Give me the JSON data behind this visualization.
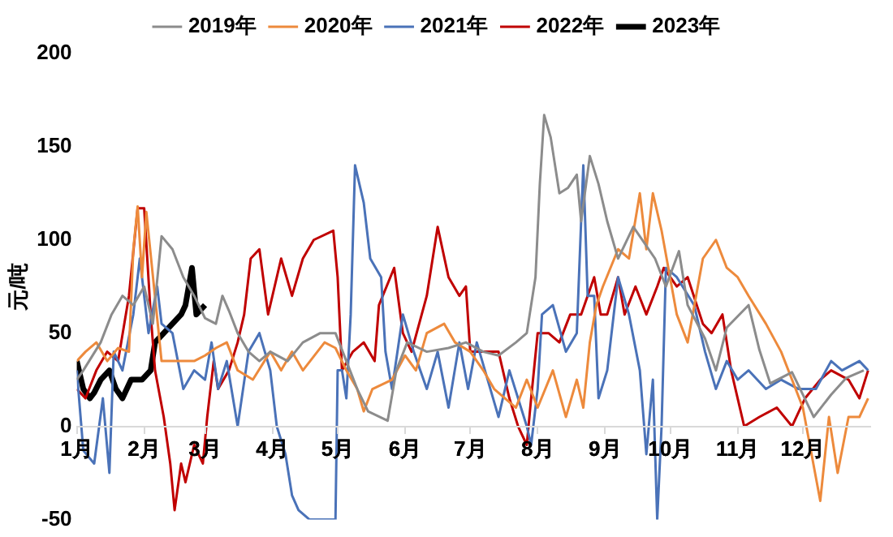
{
  "chart_data": {
    "type": "line",
    "ylabel": "元/吨",
    "xlim": [
      "--01-01",
      "--12-31"
    ],
    "xticks": [
      {
        "value": "--01-01",
        "label": "1月"
      },
      {
        "value": "--02-01",
        "label": "2月"
      },
      {
        "value": "--03-01",
        "label": "3月"
      },
      {
        "value": "--04-01",
        "label": "4月"
      },
      {
        "value": "--05-01",
        "label": "5月"
      },
      {
        "value": "--06-01",
        "label": "6月"
      },
      {
        "value": "--07-01",
        "label": "7月"
      },
      {
        "value": "--08-01",
        "label": "8月"
      },
      {
        "value": "--09-01",
        "label": "9月"
      },
      {
        "value": "--10-01",
        "label": "10月"
      },
      {
        "value": "--11-01",
        "label": "11月"
      },
      {
        "value": "--12-01",
        "label": "12月"
      }
    ],
    "ylim": [
      -50,
      200
    ],
    "yticks": [
      -50,
      0,
      50,
      100,
      150,
      200
    ],
    "grid": false,
    "legend": "top",
    "marker": "none",
    "line_style": "solid",
    "series": [
      {
        "name": "2019年",
        "color": "#8c8c8c",
        "x": [
          "--01-01",
          "--01-04",
          "--01-12",
          "--01-17",
          "--01-22",
          "--01-27",
          "--02-01",
          "--02-05",
          "--02-09",
          "--02-14",
          "--02-19",
          "--02-24",
          "--03-01",
          "--03-06",
          "--03-09",
          "--03-12",
          "--03-16",
          "--03-21",
          "--03-26",
          "--03-31",
          "--04-08",
          "--04-15",
          "--04-23",
          "--04-30",
          "--05-05",
          "--05-10",
          "--05-15",
          "--05-24",
          "--05-28",
          "--06-02",
          "--06-11",
          "--06-21",
          "--06-29",
          "--07-07",
          "--07-14",
          "--07-22",
          "--07-27",
          "--07-31",
          "--08-02",
          "--08-04",
          "--08-07",
          "--08-11",
          "--08-15",
          "--08-19",
          "--08-21",
          "--08-25",
          "--08-29",
          "--09-02",
          "--09-07",
          "--09-14",
          "--09-24",
          "--09-29",
          "--10-05",
          "--10-09",
          "--10-17",
          "--10-22",
          "--10-27",
          "--11-06",
          "--11-11",
          "--11-16",
          "--11-26",
          "--12-06",
          "--12-14",
          "--12-21",
          "--12-29"
        ],
        "values": [
          25,
          30,
          45,
          60,
          70,
          65,
          75,
          55,
          102,
          95,
          80,
          70,
          58,
          55,
          70,
          62,
          50,
          40,
          35,
          40,
          35,
          45,
          50,
          50,
          35,
          20,
          8,
          3,
          30,
          45,
          40,
          42,
          45,
          40,
          38,
          45,
          50,
          80,
          130,
          167,
          155,
          125,
          128,
          135,
          110,
          145,
          130,
          110,
          90,
          107,
          90,
          75,
          94,
          65,
          47,
          30,
          53,
          65,
          41,
          23,
          29,
          5,
          17,
          26,
          30
        ]
      },
      {
        "name": "2020年",
        "color": "#ed8a3c",
        "x": [
          "--01-01",
          "--01-05",
          "--01-10",
          "--01-15",
          "--01-20",
          "--01-25",
          "--01-27",
          "--01-29",
          "--01-31",
          "--02-02",
          "--02-09",
          "--02-14",
          "--02-24",
          "--03-01",
          "--03-06",
          "--03-11",
          "--03-16",
          "--03-23",
          "--03-31",
          "--04-05",
          "--04-10",
          "--04-15",
          "--04-25",
          "--04-30",
          "--05-05",
          "--05-10",
          "--05-13",
          "--05-17",
          "--05-26",
          "--06-01",
          "--06-06",
          "--06-11",
          "--06-19",
          "--06-24",
          "--07-01",
          "--07-07",
          "--07-12",
          "--07-22",
          "--07-27",
          "--08-01",
          "--08-08",
          "--08-14",
          "--08-19",
          "--08-22",
          "--08-25",
          "--08-28",
          "--08-31",
          "--09-07",
          "--09-12",
          "--09-17",
          "--09-20",
          "--09-23",
          "--09-27",
          "--10-04",
          "--10-09",
          "--10-16",
          "--10-22",
          "--10-27",
          "--11-01",
          "--11-06",
          "--11-14",
          "--11-21",
          "--11-26",
          "--12-01",
          "--12-09",
          "--12-13",
          "--12-17",
          "--12-22",
          "--12-27",
          "--12-31"
        ],
        "values": [
          35,
          40,
          45,
          35,
          42,
          40,
          95,
          118,
          80,
          115,
          35,
          35,
          35,
          38,
          42,
          45,
          30,
          25,
          40,
          30,
          40,
          30,
          45,
          42,
          30,
          20,
          8,
          20,
          25,
          38,
          30,
          50,
          55,
          45,
          40,
          30,
          20,
          10,
          25,
          10,
          30,
          5,
          25,
          10,
          45,
          65,
          75,
          95,
          90,
          125,
          95,
          125,
          105,
          60,
          45,
          90,
          100,
          85,
          80,
          70,
          55,
          40,
          25,
          10,
          -40,
          5,
          -25,
          5,
          5,
          15
        ]
      },
      {
        "name": "2021年",
        "color": "#4a72b8",
        "x": [
          "--01-01",
          "--01-04",
          "--01-09",
          "--01-13",
          "--01-16",
          "--01-18",
          "--01-22",
          "--01-27",
          "--01-30",
          "--02-03",
          "--02-07",
          "--02-09",
          "--02-14",
          "--02-19",
          "--02-24",
          "--03-01",
          "--03-04",
          "--03-07",
          "--03-11",
          "--03-16",
          "--03-21",
          "--03-26",
          "--03-31",
          "--04-03",
          "--04-07",
          "--04-10",
          "--04-13",
          "--04-18",
          "--04-28",
          "--04-30",
          "--05-01",
          "--05-03",
          "--05-05",
          "--05-07",
          "--05-09",
          "--05-13",
          "--05-16",
          "--05-21",
          "--05-23",
          "--05-26",
          "--05-31",
          "--06-05",
          "--06-11",
          "--06-16",
          "--06-21",
          "--06-26",
          "--06-30",
          "--07-04",
          "--07-09",
          "--07-14",
          "--07-19",
          "--07-27",
          "--07-29",
          "--08-01",
          "--08-03",
          "--08-08",
          "--08-14",
          "--08-19",
          "--08-22",
          "--08-24",
          "--08-27",
          "--08-29",
          "--09-02",
          "--09-07",
          "--09-12",
          "--09-17",
          "--09-20",
          "--09-23",
          "--09-25",
          "--09-27",
          "--09-29",
          "--10-04",
          "--10-12",
          "--10-17",
          "--10-22",
          "--10-27",
          "--11-01",
          "--11-06",
          "--11-14",
          "--11-21",
          "--11-29",
          "--12-07",
          "--12-14",
          "--12-19",
          "--12-27",
          "--12-31"
        ],
        "values": [
          30,
          -13,
          -20,
          15,
          -25,
          40,
          30,
          60,
          90,
          50,
          75,
          55,
          50,
          20,
          30,
          25,
          45,
          20,
          35,
          0,
          40,
          50,
          30,
          0,
          -15,
          -37,
          -45,
          -50,
          -50,
          -50,
          30,
          30,
          15,
          60,
          140,
          120,
          90,
          80,
          40,
          20,
          60,
          40,
          20,
          40,
          10,
          45,
          20,
          45,
          25,
          5,
          30,
          0,
          -10,
          20,
          60,
          65,
          40,
          50,
          140,
          70,
          70,
          15,
          30,
          80,
          60,
          30,
          -15,
          25,
          -50,
          0,
          85,
          80,
          65,
          40,
          20,
          35,
          25,
          30,
          20,
          25,
          20,
          20,
          35,
          30,
          35,
          30
        ]
      },
      {
        "name": "2022年",
        "color": "#c00000",
        "x": [
          "--01-01",
          "--01-05",
          "--01-10",
          "--01-15",
          "--01-20",
          "--01-25",
          "--01-29",
          "--02-01",
          "--02-04",
          "--02-06",
          "--02-10",
          "--02-13",
          "--02-15",
          "--02-18",
          "--02-20",
          "--02-24",
          "--02-28",
          "--03-02",
          "--03-05",
          "--03-07",
          "--03-12",
          "--03-16",
          "--03-19",
          "--03-22",
          "--03-26",
          "--03-30",
          "--04-05",
          "--04-10",
          "--04-15",
          "--04-20",
          "--04-29",
          "--05-01",
          "--05-03",
          "--05-08",
          "--05-13",
          "--05-18",
          "--05-20",
          "--05-27",
          "--05-31",
          "--06-04",
          "--06-11",
          "--06-16",
          "--06-21",
          "--06-26",
          "--06-29",
          "--07-01",
          "--07-09",
          "--07-14",
          "--07-19",
          "--07-23",
          "--07-27",
          "--07-29",
          "--08-01",
          "--08-06",
          "--08-11",
          "--08-16",
          "--08-21",
          "--08-27",
          "--08-30",
          "--09-02",
          "--09-07",
          "--09-10",
          "--09-15",
          "--09-20",
          "--09-25",
          "--09-28",
          "--10-04",
          "--10-09",
          "--10-16",
          "--10-20",
          "--10-25",
          "--10-29",
          "--11-01",
          "--11-04",
          "--11-11",
          "--11-19",
          "--11-26",
          "--12-02",
          "--12-09",
          "--12-14",
          "--12-22",
          "--12-27",
          "--12-31"
        ],
        "values": [
          20,
          15,
          30,
          40,
          35,
          70,
          117,
          117,
          60,
          30,
          5,
          -20,
          -45,
          -20,
          -30,
          -10,
          -20,
          5,
          35,
          20,
          30,
          45,
          60,
          90,
          95,
          60,
          90,
          70,
          90,
          100,
          105,
          80,
          30,
          40,
          45,
          35,
          65,
          85,
          50,
          40,
          70,
          107,
          80,
          70,
          75,
          40,
          40,
          40,
          15,
          0,
          -10,
          15,
          50,
          50,
          45,
          60,
          60,
          80,
          60,
          60,
          80,
          60,
          75,
          60,
          75,
          85,
          75,
          80,
          55,
          50,
          60,
          30,
          15,
          0,
          5,
          10,
          0,
          15,
          25,
          30,
          25,
          15,
          30
        ]
      },
      {
        "name": "2023年",
        "color": "#000000",
        "x": [
          "--01-01",
          "--01-04",
          "--01-07",
          "--01-09",
          "--01-12",
          "--01-16",
          "--01-19",
          "--01-22",
          "--01-26",
          "--01-31",
          "--02-04",
          "--02-06",
          "--02-10",
          "--02-14",
          "--02-18",
          "--02-20",
          "--02-23",
          "--02-25",
          "--03-01"
        ],
        "values": [
          35,
          20,
          15,
          18,
          25,
          30,
          20,
          15,
          25,
          25,
          30,
          45,
          50,
          55,
          60,
          65,
          85,
          60,
          65
        ]
      }
    ]
  }
}
